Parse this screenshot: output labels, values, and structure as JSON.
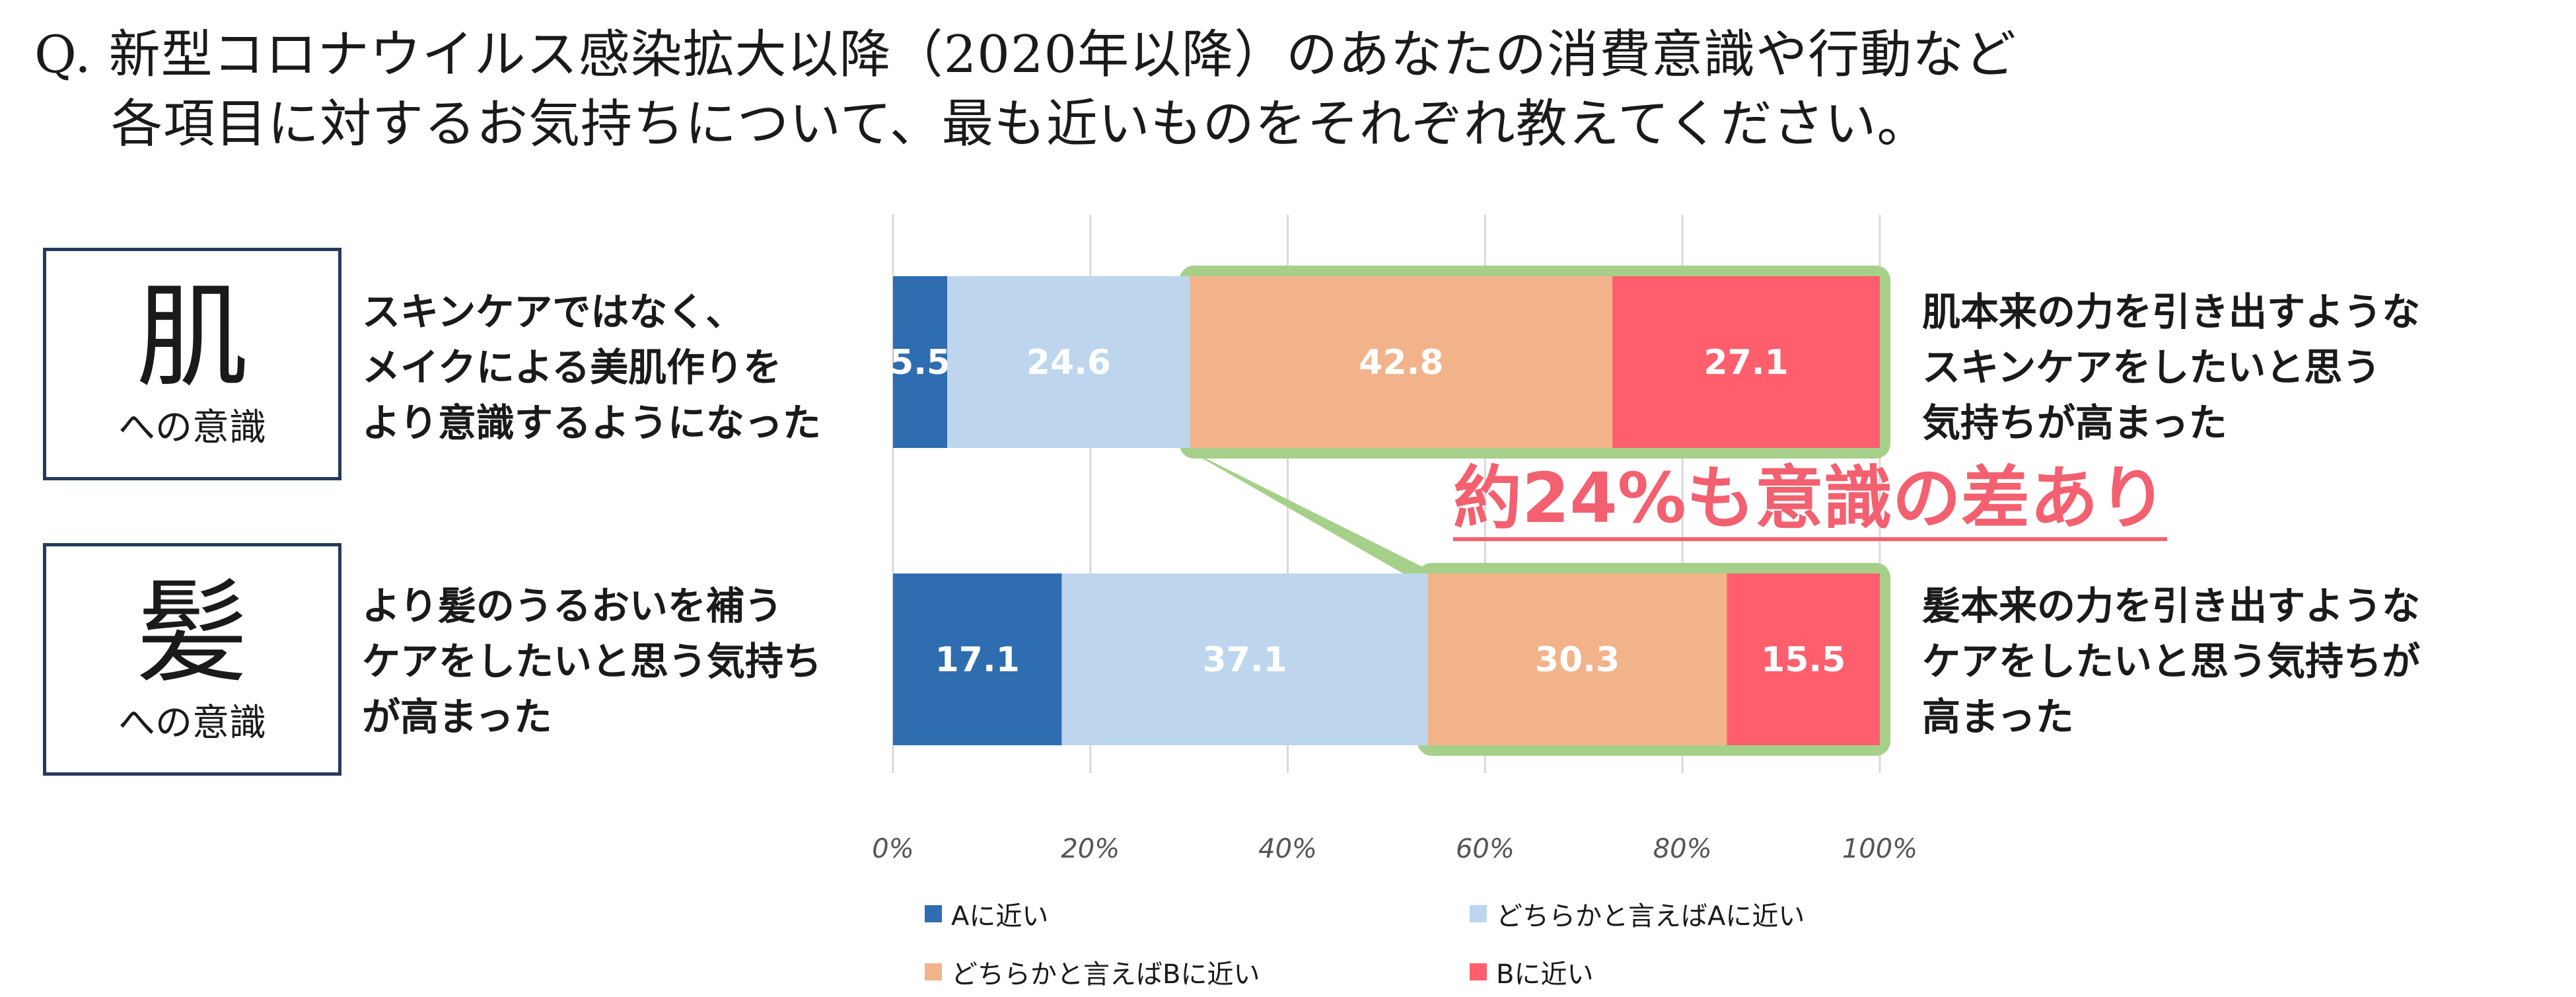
{
  "title": {
    "line1": "Q. 新型コロナウイルス感染拡大以降（2020年以降）のあなたの消費意識や行動など",
    "line2": "各項目に対するお気持ちについて、最も近いものをそれぞれ教えてください。"
  },
  "rows": [
    {
      "big": "肌",
      "small": "への意識",
      "statement_a": [
        "スキンケアではなく、",
        "メイクによる美肌作りを",
        "より意識するようになった"
      ],
      "statement_b": [
        "肌本来の力を引き出すような",
        "スキンケアをしたいと思う",
        "気持ちが高まった"
      ]
    },
    {
      "big": "髪",
      "small": "への意識",
      "statement_a": [
        "より髪のうるおいを補う",
        "ケアをしたいと思う気持ち",
        "が高まった"
      ],
      "statement_b": [
        "髪本来の力を引き出すような",
        "ケアをしたいと思う気持ちが",
        "高まった"
      ]
    }
  ],
  "callout": "約24%も意識の差あり",
  "chart_data": {
    "type": "bar",
    "orientation": "horizontal",
    "stacked": true,
    "categories": [
      "肌への意識",
      "髪への意識"
    ],
    "series": [
      {
        "name": "Aに近い",
        "color": "#2e6db0",
        "values": [
          5.5,
          17.1
        ]
      },
      {
        "name": "どちらかと言えばAに近い",
        "color": "#bdd6ee",
        "values": [
          24.6,
          37.1
        ]
      },
      {
        "name": "どちらかと言えばBに近い",
        "color": "#f3b38a",
        "values": [
          42.8,
          30.3
        ]
      },
      {
        "name": "Bに近い",
        "color": "#ff5f6d",
        "values": [
          27.1,
          15.5
        ]
      }
    ],
    "xlim": [
      0,
      100
    ],
    "x_ticks": [
      "0%",
      "20%",
      "40%",
      "60%",
      "80%",
      "100%"
    ],
    "grid": true,
    "legend_position": "bottom",
    "highlight_color": "#a6d08a"
  }
}
